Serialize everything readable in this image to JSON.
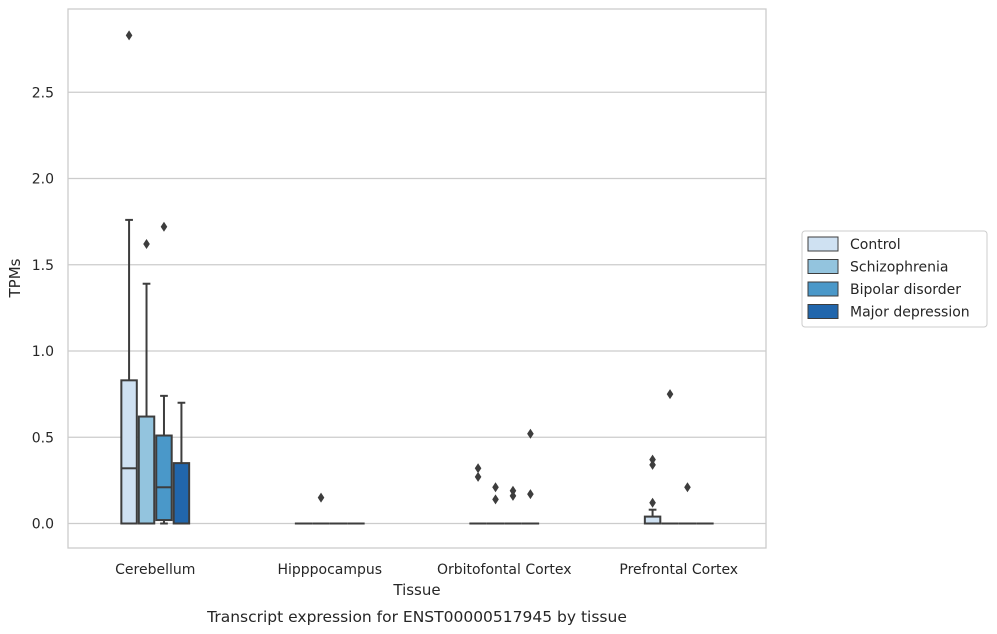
{
  "chart_data": {
    "type": "box",
    "title": "",
    "caption": "Transcript expression for ENST00000517945 by tissue",
    "xlabel": "Tissue",
    "ylabel": "TPMs",
    "ylim": [
      -0.14,
      2.97
    ],
    "yticks": [
      0.0,
      0.5,
      1.0,
      1.5,
      2.0,
      2.5
    ],
    "ytick_labels": [
      "0.0",
      "0.5",
      "1.0",
      "1.5",
      "2.0",
      "2.5"
    ],
    "grid": "horizontal",
    "legend_position": "right",
    "categories": [
      "Cerebellum",
      "Hipppocampus",
      "Orbitofontal Cortex",
      "Prefrontal Cortex"
    ],
    "series": [
      {
        "name": "Control",
        "color": "#cfe1f2",
        "boxes": [
          {
            "q1": 0.0,
            "median": 0.32,
            "q3": 0.83,
            "whisker_low": 0.0,
            "whisker_high": 1.76,
            "outliers": [
              2.83
            ]
          },
          {
            "q1": 0.0,
            "median": 0.0,
            "q3": 0.0,
            "whisker_low": 0.0,
            "whisker_high": 0.0,
            "outliers": []
          },
          {
            "q1": 0.0,
            "median": 0.0,
            "q3": 0.0,
            "whisker_low": 0.0,
            "whisker_high": 0.0,
            "outliers": [
              0.32,
              0.27
            ]
          },
          {
            "q1": 0.0,
            "median": 0.0,
            "q3": 0.04,
            "whisker_low": 0.0,
            "whisker_high": 0.08,
            "outliers": [
              0.37,
              0.34,
              0.12
            ]
          }
        ]
      },
      {
        "name": "Schizophrenia",
        "color": "#93c4de",
        "boxes": [
          {
            "q1": 0.0,
            "median": 0.0,
            "q3": 0.62,
            "whisker_low": 0.0,
            "whisker_high": 1.39,
            "outliers": [
              1.62
            ]
          },
          {
            "q1": 0.0,
            "median": 0.0,
            "q3": 0.0,
            "whisker_low": 0.0,
            "whisker_high": 0.0,
            "outliers": [
              0.15
            ]
          },
          {
            "q1": 0.0,
            "median": 0.0,
            "q3": 0.0,
            "whisker_low": 0.0,
            "whisker_high": 0.0,
            "outliers": [
              0.21,
              0.14
            ]
          },
          {
            "q1": 0.0,
            "median": 0.0,
            "q3": 0.0,
            "whisker_low": 0.0,
            "whisker_high": 0.0,
            "outliers": [
              0.75
            ]
          }
        ]
      },
      {
        "name": "Bipolar disorder",
        "color": "#4a98c9",
        "boxes": [
          {
            "q1": 0.02,
            "median": 0.21,
            "q3": 0.51,
            "whisker_low": 0.0,
            "whisker_high": 0.74,
            "outliers": [
              1.72
            ]
          },
          {
            "q1": 0.0,
            "median": 0.0,
            "q3": 0.0,
            "whisker_low": 0.0,
            "whisker_high": 0.0,
            "outliers": []
          },
          {
            "q1": 0.0,
            "median": 0.0,
            "q3": 0.0,
            "whisker_low": 0.0,
            "whisker_high": 0.0,
            "outliers": [
              0.19,
              0.16
            ]
          },
          {
            "q1": 0.0,
            "median": 0.0,
            "q3": 0.0,
            "whisker_low": 0.0,
            "whisker_high": 0.0,
            "outliers": [
              0.21
            ]
          }
        ]
      },
      {
        "name": "Major depression",
        "color": "#2166ac",
        "boxes": [
          {
            "q1": 0.0,
            "median": 0.0,
            "q3": 0.35,
            "whisker_low": 0.0,
            "whisker_high": 0.7,
            "outliers": []
          },
          {
            "q1": 0.0,
            "median": 0.0,
            "q3": 0.0,
            "whisker_low": 0.0,
            "whisker_high": 0.0,
            "outliers": []
          },
          {
            "q1": 0.0,
            "median": 0.0,
            "q3": 0.0,
            "whisker_low": 0.0,
            "whisker_high": 0.0,
            "outliers": [
              0.52,
              0.17
            ]
          },
          {
            "q1": 0.0,
            "median": 0.0,
            "q3": 0.0,
            "whisker_low": 0.0,
            "whisker_high": 0.0,
            "outliers": []
          }
        ]
      }
    ]
  }
}
